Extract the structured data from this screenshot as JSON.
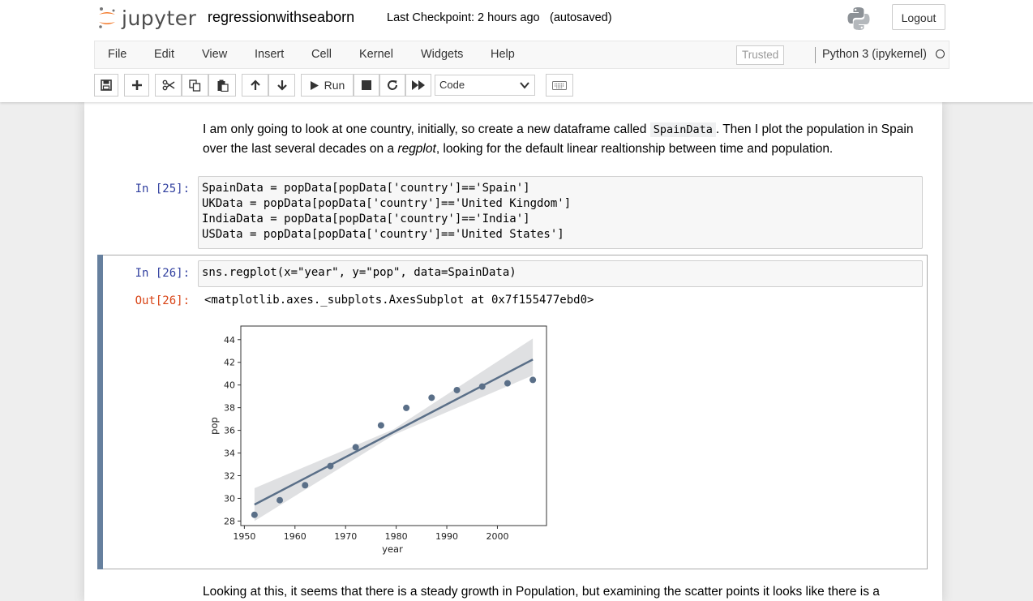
{
  "header": {
    "logo_text": "jupyter",
    "notebook_name": "regressionwithseaborn",
    "checkpoint": "Last Checkpoint: 2 hours ago",
    "autosave": "(autosaved)",
    "python_logo_icon": "python-logo",
    "logout_label": "Logout"
  },
  "menu": {
    "items": [
      "File",
      "Edit",
      "View",
      "Insert",
      "Cell",
      "Kernel",
      "Widgets",
      "Help"
    ],
    "trusted_label": "Trusted",
    "kernel_name": "Python 3 (ipykernel)"
  },
  "toolbar": {
    "icons": [
      "save-icon",
      "plus-icon",
      "cut-icon",
      "copy-icon",
      "paste-icon",
      "arrow-up-icon",
      "arrow-down-icon",
      "play-icon",
      "stop-icon",
      "restart-icon",
      "fast-forward-icon",
      "keyboard-icon"
    ],
    "run_label": "Run",
    "cell_type": "Code"
  },
  "cells": {
    "md1": {
      "part1": "I am only going to look at one country, initially, so create a new dataframe called ",
      "code": "SpainData",
      "part2": ". Then I plot the population in Spain over the last several decades on a ",
      "em": "regplot",
      "part3": ", looking for the default linear realtionship between time and population."
    },
    "c25": {
      "prompt": "In [25]:",
      "code": "SpainData = popData[popData['country']=='Spain']\nUKData = popData[popData['country']=='United Kingdom']\nIndiaData = popData[popData['country']=='India']\nUSData = popData[popData['country']=='United States']"
    },
    "c26": {
      "prompt": "In [26]:",
      "code": "sns.regplot(x=\"year\", y=\"pop\", data=SpainData)",
      "out_prompt": "Out[26]:",
      "out_text": "<matplotlib.axes._subplots.AxesSubplot at 0x7f155477ebd0>"
    },
    "md2": {
      "text": "Looking at this, it seems that there is a steady growth in Population, but examining the scatter points it looks like there is a"
    }
  },
  "chart_data": {
    "type": "scatter",
    "title": "",
    "xlabel": "year",
    "ylabel": "pop",
    "xlim": [
      1949.3,
      2009.7
    ],
    "ylim": [
      27.6,
      45.2
    ],
    "xticks": [
      1950,
      1960,
      1970,
      1980,
      1990,
      2000
    ],
    "yticks": [
      28,
      30,
      32,
      34,
      36,
      38,
      40,
      42,
      44
    ],
    "x": [
      1952,
      1957,
      1962,
      1967,
      1972,
      1977,
      1982,
      1987,
      1992,
      1997,
      2002,
      2007
    ],
    "y": [
      28.55,
      29.84,
      31.16,
      32.85,
      34.51,
      36.44,
      37.98,
      38.88,
      39.55,
      39.86,
      40.15,
      40.45
    ],
    "regression_line": {
      "x": [
        1952,
        2007
      ],
      "y": [
        29.45,
        42.25
      ]
    },
    "confidence_band": {
      "x": [
        1952,
        1979.5,
        2007
      ],
      "lower": [
        28.0,
        35.6,
        40.85
      ],
      "upper": [
        30.9,
        36.1,
        44.1
      ]
    },
    "color": "#5a6f88",
    "band_color": "#d9dbdd",
    "grid": false
  }
}
